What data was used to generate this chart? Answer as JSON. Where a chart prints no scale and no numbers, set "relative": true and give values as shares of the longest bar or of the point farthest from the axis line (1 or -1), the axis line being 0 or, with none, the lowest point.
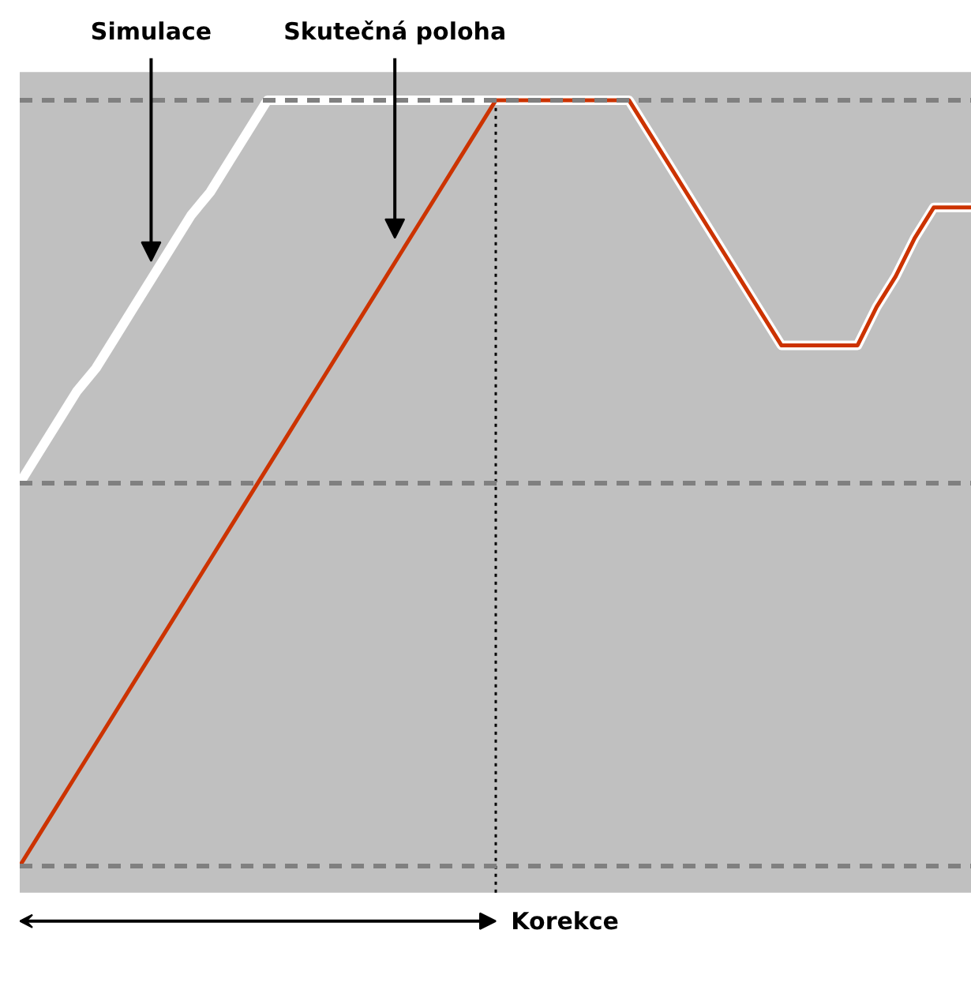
{
  "chart_data": {
    "type": "line",
    "relative": true,
    "categories": [
      null,
      null,
      null,
      null,
      null,
      null,
      null,
      null,
      null,
      null,
      null,
      null,
      null,
      null,
      null,
      null,
      null,
      null,
      null,
      null,
      null,
      null,
      null,
      null,
      null,
      null,
      null,
      null,
      null,
      null,
      null,
      null,
      null,
      null,
      null,
      null,
      null,
      null,
      null,
      null,
      null,
      null,
      null,
      null,
      null,
      null,
      null,
      null,
      null,
      null,
      null
    ],
    "series": [
      {
        "name": "Simulace",
        "color": "#ffffff",
        "values": [
          0.5,
          0.54,
          0.58,
          0.62,
          0.65,
          0.69,
          0.73,
          0.77,
          0.81,
          0.85,
          0.88,
          0.92,
          0.96,
          1,
          1,
          1,
          1,
          1,
          1,
          1,
          1,
          1,
          1,
          1,
          1,
          1,
          1,
          1,
          1,
          1,
          1,
          1,
          1,
          0.96,
          0.92,
          0.88,
          0.84,
          0.8,
          0.76,
          0.72,
          0.68,
          0.68,
          0.68,
          0.68,
          0.68,
          0.73,
          0.77,
          0.82,
          0.86,
          0.86,
          0.86
        ]
      },
      {
        "name": "Skutečná poloha",
        "color": "#cc3300",
        "values": [
          0,
          0.04,
          0.08,
          0.12,
          0.16,
          0.2,
          0.24,
          0.28,
          0.32,
          0.36,
          0.4,
          0.44,
          0.48,
          0.52,
          0.56,
          0.6,
          0.64,
          0.68,
          0.72,
          0.76,
          0.8,
          0.84,
          0.88,
          0.92,
          0.96,
          1,
          1,
          1,
          1,
          1,
          1,
          1,
          1,
          0.96,
          0.92,
          0.88,
          0.84,
          0.8,
          0.76,
          0.72,
          0.68,
          0.68,
          0.68,
          0.68,
          0.68,
          0.73,
          0.77,
          0.82,
          0.86,
          0.86,
          0.86
        ]
      }
    ],
    "ref_lines": [
      {
        "axis": "y",
        "value": 0,
        "color": "#808080",
        "line_style": "dashed"
      },
      {
        "axis": "y",
        "value": 0.5,
        "color": "#808080",
        "line_style": "dashed"
      },
      {
        "axis": "y",
        "value": 1,
        "color": "#808080",
        "line_style": "dashed"
      }
    ],
    "annotations": [
      "Korekce"
    ],
    "grid": false
  }
}
